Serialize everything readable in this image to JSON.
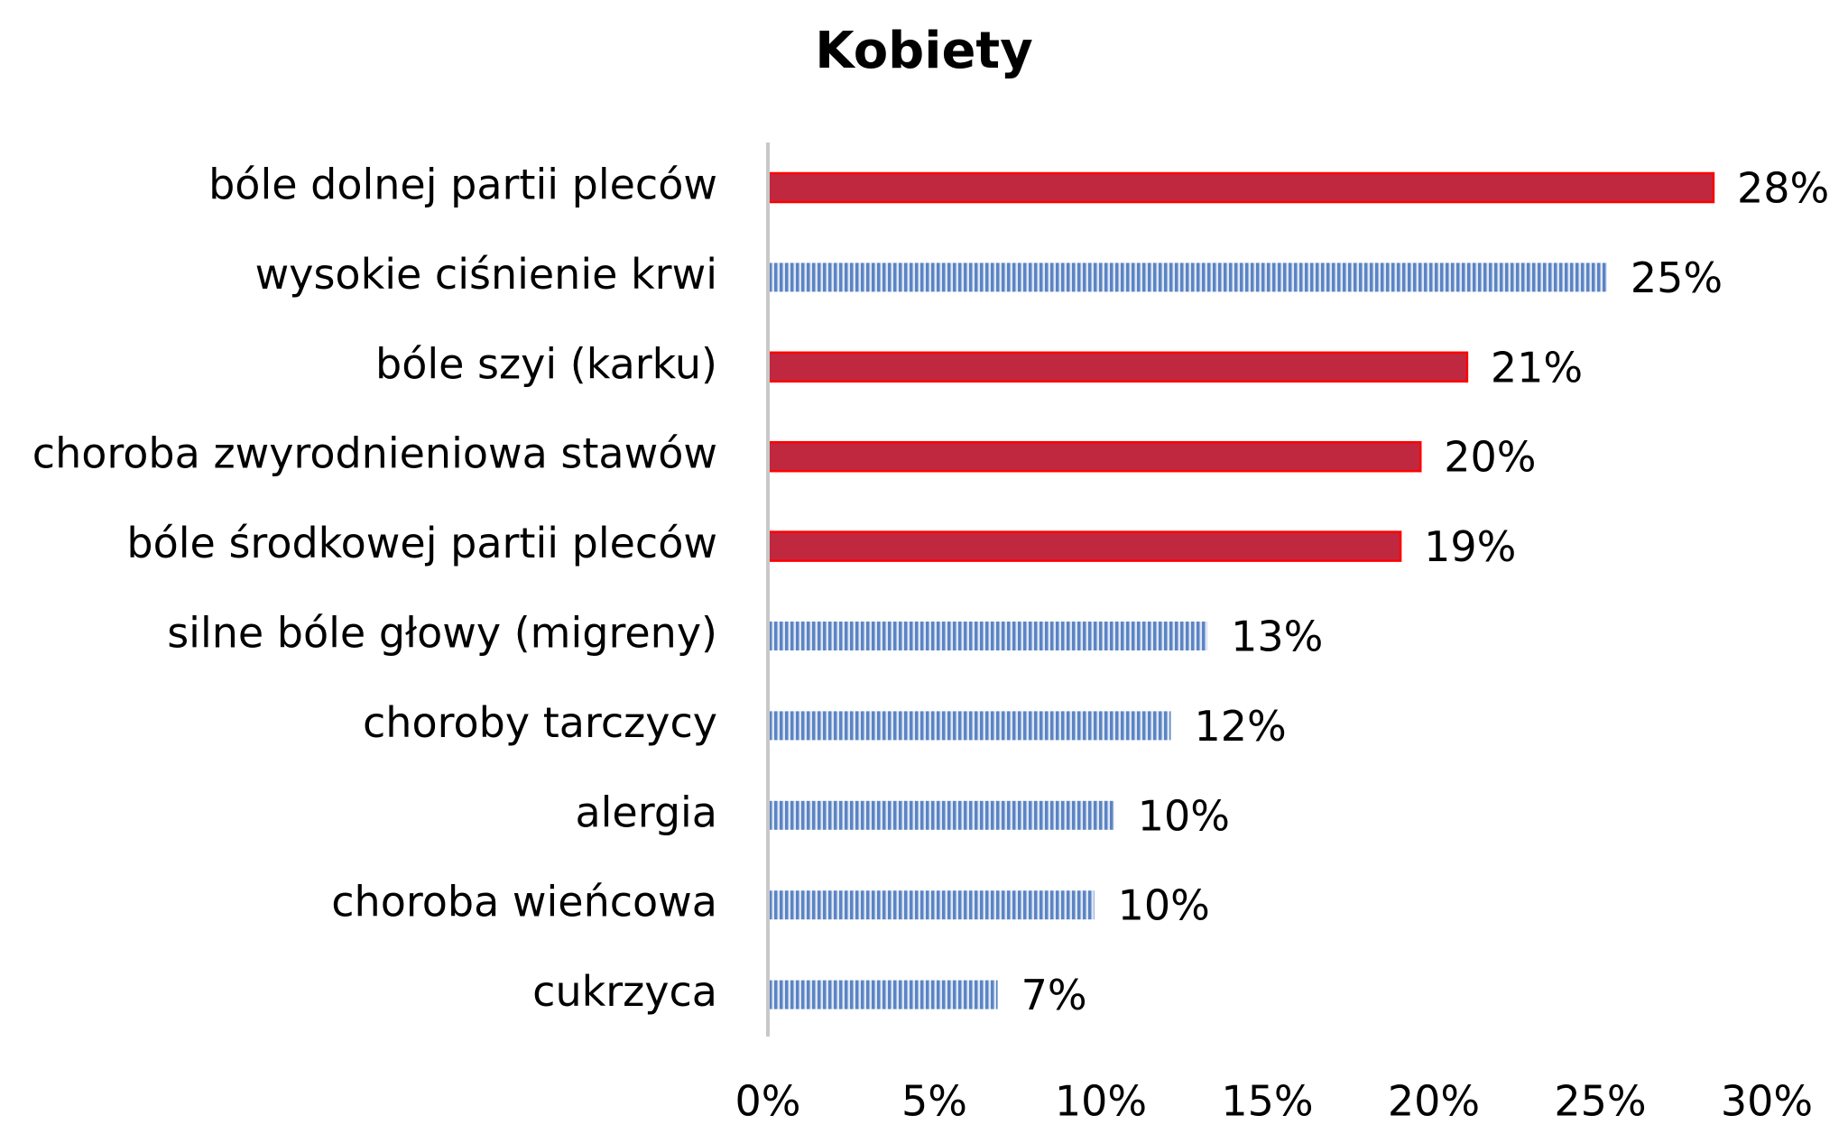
{
  "chart_data": {
    "type": "bar",
    "orientation": "horizontal",
    "title": "Kobiety",
    "categories": [
      "bóle dolnej partii pleców",
      "wysokie ciśnienie krwi",
      "bóle szyi (karku)",
      "choroba zwyrodnieniowa stawów",
      "bóle środkowej partii pleców",
      "silne bóle głowy (migreny)",
      "choroby tarczycy",
      "alergia",
      "choroba wieńcowa",
      "cukrzyca"
    ],
    "values": [
      28.4,
      25.2,
      21,
      19.6,
      19,
      13.2,
      12.1,
      10.4,
      9.8,
      6.9
    ],
    "value_labels": [
      "28%",
      "25%",
      "21%",
      "20%",
      "19%",
      "13%",
      "12%",
      "10%",
      "10%",
      "7%"
    ],
    "colors": [
      "#c0283f",
      "#5b84c4",
      "#c0283f",
      "#c0283f",
      "#c0283f",
      "#5b84c4",
      "#5b84c4",
      "#5b84c4",
      "#5b84c4",
      "#5b84c4"
    ],
    "fill_styles": [
      "solid",
      "striped",
      "solid",
      "solid",
      "solid",
      "striped",
      "striped",
      "striped",
      "striped",
      "striped"
    ],
    "xlim": [
      0,
      30
    ],
    "xticks": [
      {
        "value": 0,
        "label": "0%"
      },
      {
        "value": 5,
        "label": "5%"
      },
      {
        "value": 10,
        "label": "10%"
      },
      {
        "value": 15,
        "label": "15%"
      },
      {
        "value": 20,
        "label": "20%"
      },
      {
        "value": 25,
        "label": "25%"
      },
      {
        "value": 30,
        "label": "30%"
      }
    ],
    "grid": false
  }
}
